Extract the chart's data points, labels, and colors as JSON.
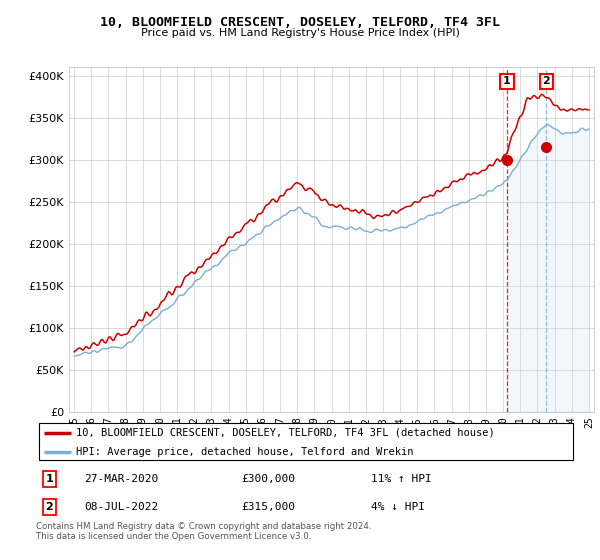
{
  "title": "10, BLOOMFIELD CRESCENT, DOSELEY, TELFORD, TF4 3FL",
  "subtitle": "Price paid vs. HM Land Registry's House Price Index (HPI)",
  "legend_line1": "10, BLOOMFIELD CRESCENT, DOSELEY, TELFORD, TF4 3FL (detached house)",
  "legend_line2": "HPI: Average price, detached house, Telford and Wrekin",
  "annotation1_date": "27-MAR-2020",
  "annotation1_price": "£300,000",
  "annotation1_hpi": "11% ↑ HPI",
  "annotation2_date": "08-JUL-2022",
  "annotation2_price": "£315,000",
  "annotation2_hpi": "4% ↓ HPI",
  "footer": "Contains HM Land Registry data © Crown copyright and database right 2024.\nThis data is licensed under the Open Government Licence v3.0.",
  "hpi_color": "#7bafd4",
  "price_color": "#cc0000",
  "fill_color": "#cce0f0",
  "ylim": [
    0,
    410000
  ],
  "yticks": [
    0,
    50000,
    100000,
    150000,
    200000,
    250000,
    300000,
    350000,
    400000
  ],
  "xmin": 1994.7,
  "xmax": 2025.3,
  "marker1_x": 2020.23,
  "marker1_y": 300000,
  "marker2_x": 2022.52,
  "marker2_y": 315000
}
